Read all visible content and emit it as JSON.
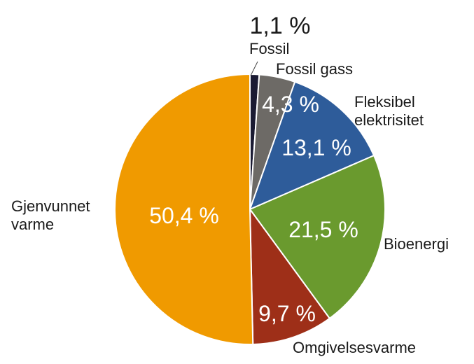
{
  "chart_data": {
    "type": "pie",
    "categories": [
      "Fossil",
      "Fossil gass",
      "Fleksibel elektrisitet",
      "Bioenergi",
      "Omgivelsesvarme",
      "Gjenvunnet varme"
    ],
    "values": [
      1.1,
      4.3,
      13.1,
      21.5,
      9.7,
      50.4
    ],
    "value_labels": [
      "1,1 %",
      "4,3 %",
      "13,1 %",
      "21,5 %",
      "9,7 %",
      "50,4 %"
    ],
    "category_label_lines": [
      [
        "Fossil"
      ],
      [
        "Fossil gass"
      ],
      [
        "Fleksibel",
        "elektrisitet"
      ],
      [
        "Bioenergi"
      ],
      [
        "Omgivelsesvarme"
      ],
      [
        "Gjenvunnet",
        "varme"
      ]
    ],
    "colors": [
      "#1b1b33",
      "#6d6a66",
      "#2e5c9a",
      "#6a9a2e",
      "#9e2f18",
      "#f09a00"
    ],
    "start": "12 o'clock, clockwise",
    "legend": "none (direct labels)"
  }
}
